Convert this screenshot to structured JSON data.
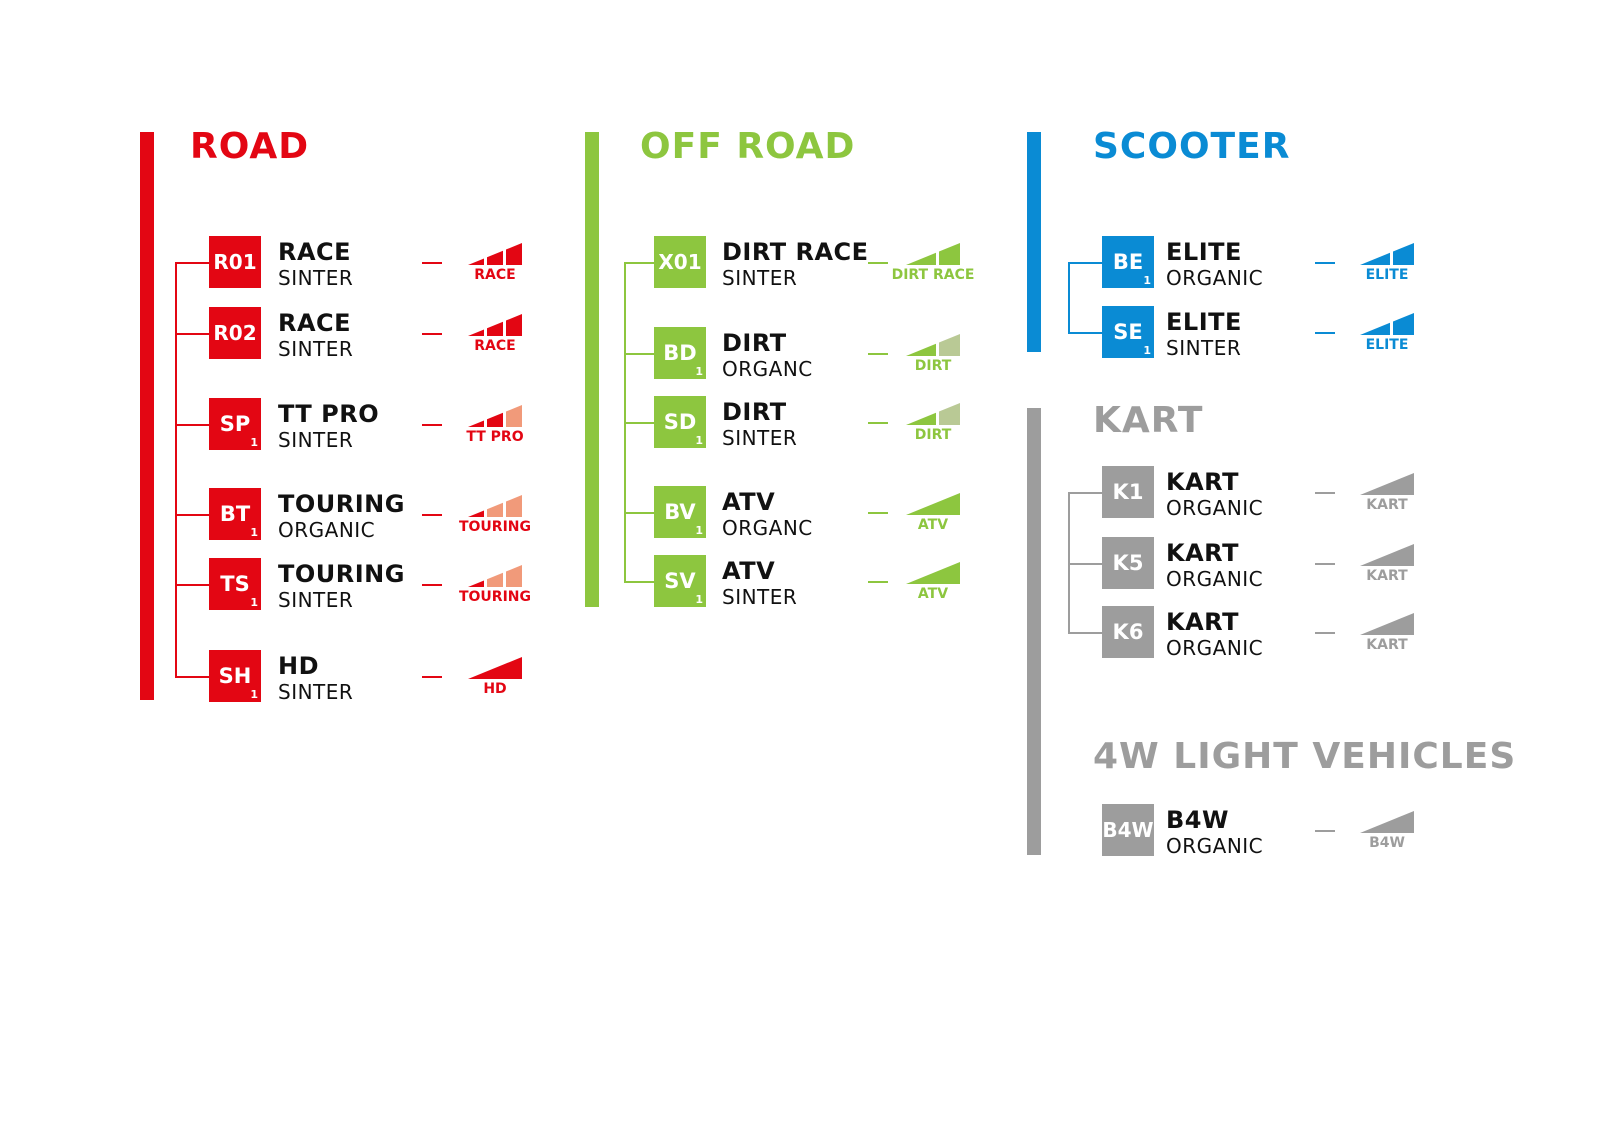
{
  "colors": {
    "road": "#e30613",
    "road_light": "#f19a7a",
    "offroad": "#8dc63f",
    "offroad_light": "#b9c995",
    "scooter": "#0a8bd4",
    "kart": "#9d9d9d"
  },
  "sections": [
    {
      "id": "road",
      "title": "ROAD",
      "color": "#e30613",
      "light": "#f19a7a",
      "items": [
        {
          "code": "R01",
          "sub": "",
          "name": "RACE",
          "type": "SINTER",
          "meter": {
            "label": "RACE",
            "segments": 3,
            "filled": 3
          }
        },
        {
          "code": "R02",
          "sub": "",
          "name": "RACE",
          "type": "SINTER",
          "meter": {
            "label": "RACE",
            "segments": 3,
            "filled": 3
          }
        },
        {
          "code": "SP",
          "sub": "1",
          "name": "TT PRO",
          "type": "SINTER",
          "meter": {
            "label": "TT PRO",
            "segments": 3,
            "filled": 2
          }
        },
        {
          "code": "BT",
          "sub": "1",
          "name": "TOURING",
          "type": "ORGANIC",
          "meter": {
            "label": "TOURING",
            "segments": 3,
            "filled": 1
          }
        },
        {
          "code": "TS",
          "sub": "1",
          "name": "TOURING",
          "type": "SINTER",
          "meter": {
            "label": "TOURING",
            "segments": 3,
            "filled": 1
          }
        },
        {
          "code": "SH",
          "sub": "1",
          "name": "HD",
          "type": "SINTER",
          "meter": {
            "label": "HD",
            "segments": 1,
            "filled": 1
          }
        }
      ]
    },
    {
      "id": "offroad",
      "title": "OFF ROAD",
      "color": "#8dc63f",
      "light": "#b9c995",
      "items": [
        {
          "code": "X01",
          "sub": "",
          "name": "DIRT RACE",
          "type": "SINTER",
          "meter": {
            "label": "DIRT RACE",
            "segments": 2,
            "filled": 2
          }
        },
        {
          "code": "BD",
          "sub": "1",
          "name": "DIRT",
          "type": "ORGANC",
          "meter": {
            "label": "DIRT",
            "segments": 2,
            "filled": 1
          }
        },
        {
          "code": "SD",
          "sub": "1",
          "name": "DIRT",
          "type": "SINTER",
          "meter": {
            "label": "DIRT",
            "segments": 2,
            "filled": 1
          }
        },
        {
          "code": "BV",
          "sub": "1",
          "name": "ATV",
          "type": "ORGANC",
          "meter": {
            "label": "ATV",
            "segments": 1,
            "filled": 1
          }
        },
        {
          "code": "SV",
          "sub": "1",
          "name": "ATV",
          "type": "SINTER",
          "meter": {
            "label": "ATV",
            "segments": 1,
            "filled": 1
          }
        }
      ]
    },
    {
      "id": "scooter",
      "title": "SCOOTER",
      "color": "#0a8bd4",
      "light": "#0a8bd4",
      "items": [
        {
          "code": "BE",
          "sub": "1",
          "name": "ELITE",
          "type": "ORGANIC",
          "meter": {
            "label": "ELITE",
            "segments": 2,
            "filled": 2
          }
        },
        {
          "code": "SE",
          "sub": "1",
          "name": "ELITE",
          "type": "SINTER",
          "meter": {
            "label": "ELITE",
            "segments": 2,
            "filled": 2
          }
        }
      ]
    },
    {
      "id": "kart",
      "title": "KART",
      "color": "#9d9d9d",
      "light": "#9d9d9d",
      "items": [
        {
          "code": "K1",
          "sub": "",
          "name": "KART",
          "type": "ORGANIC",
          "meter": {
            "label": "KART",
            "segments": 1,
            "filled": 1
          }
        },
        {
          "code": "K5",
          "sub": "",
          "name": "KART",
          "type": "ORGANIC",
          "meter": {
            "label": "KART",
            "segments": 1,
            "filled": 1
          }
        },
        {
          "code": "K6",
          "sub": "",
          "name": "KART",
          "type": "ORGANIC",
          "meter": {
            "label": "KART",
            "segments": 1,
            "filled": 1
          }
        }
      ]
    },
    {
      "id": "light-vehicles",
      "title": "4W LIGHT VEHICLES",
      "color": "#9d9d9d",
      "light": "#9d9d9d",
      "items": [
        {
          "code": "B4W",
          "sub": "",
          "name": "B4W",
          "type": "ORGANIC",
          "meter": {
            "label": "B4W",
            "segments": 1,
            "filled": 1
          }
        }
      ]
    }
  ]
}
